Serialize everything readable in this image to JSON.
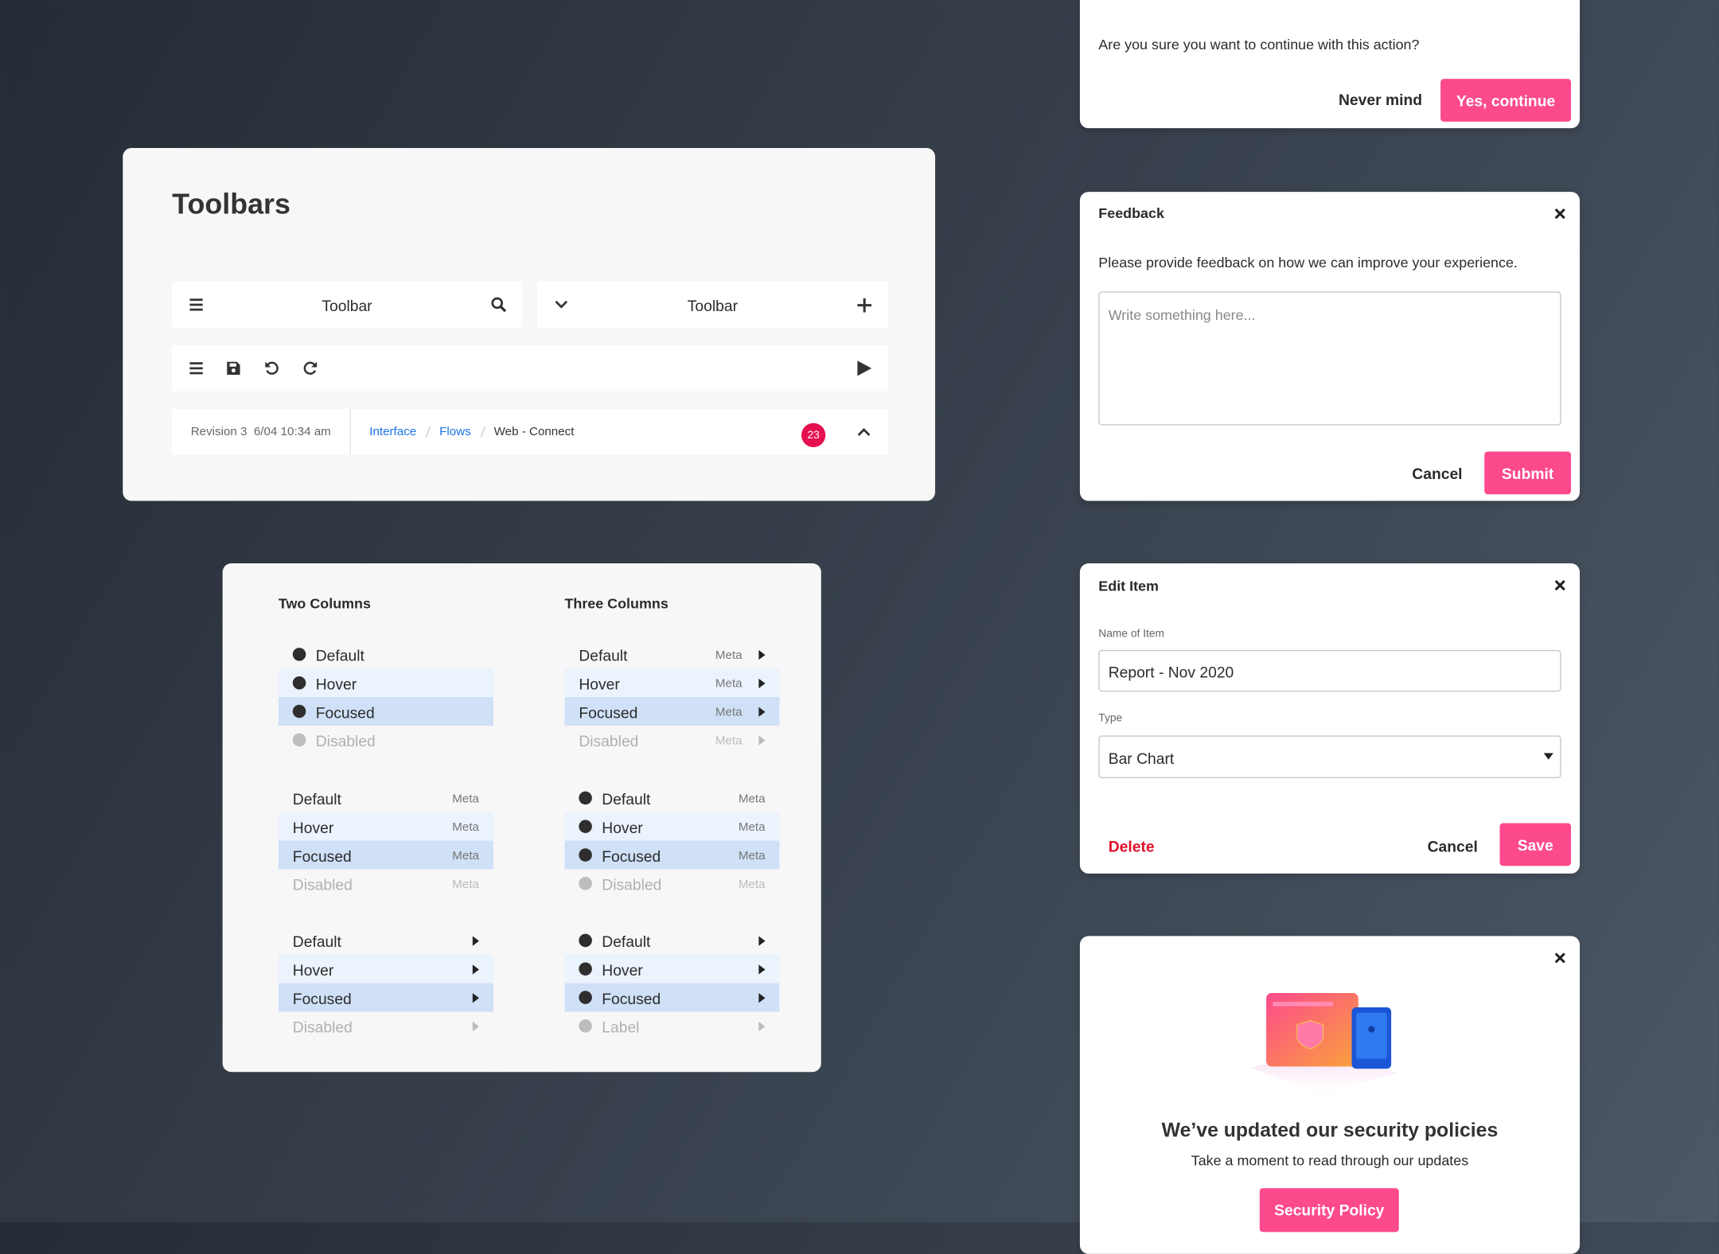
{
  "confirm_dialog": {
    "message": "Are you sure you want to continue with this action?",
    "secondary_button": "Never mind",
    "primary_button": "Yes, continue"
  },
  "toolbars": {
    "title": "Toolbars",
    "toolbar_left": "Toolbar",
    "toolbar_right": "Toolbar",
    "status": {
      "revision": "Revision 3",
      "timestamp": "6/04 10:34 am",
      "breadcrumbs": [
        "Interface",
        "Flows",
        "Web - Connect"
      ],
      "badge": 23
    }
  },
  "lists": {
    "states": [
      "default",
      "hover",
      "focused",
      "disabled"
    ],
    "columns": [
      {
        "heading": "Two Columns",
        "groups": [
          {
            "bullet": true,
            "arrow": false,
            "items": [
              {
                "label": "Default"
              },
              {
                "label": "Hover"
              },
              {
                "label": "Focused"
              },
              {
                "label": "Disabled"
              }
            ]
          },
          {
            "bullet": false,
            "arrow": false,
            "items": [
              {
                "label": "Default",
                "meta": "Meta"
              },
              {
                "label": "Hover",
                "meta": "Meta"
              },
              {
                "label": "Focused",
                "meta": "Meta"
              },
              {
                "label": "Disabled",
                "meta": "Meta"
              }
            ]
          },
          {
            "bullet": false,
            "arrow": true,
            "items": [
              {
                "label": "Default"
              },
              {
                "label": "Hover"
              },
              {
                "label": "Focused"
              },
              {
                "label": "Disabled"
              }
            ]
          }
        ]
      },
      {
        "heading": "Three Columns",
        "groups": [
          {
            "bullet": false,
            "arrow": true,
            "items": [
              {
                "label": "Default",
                "meta": "Meta"
              },
              {
                "label": "Hover",
                "meta": "Meta"
              },
              {
                "label": "Focused",
                "meta": "Meta"
              },
              {
                "label": "Disabled",
                "meta": "Meta"
              }
            ]
          },
          {
            "bullet": true,
            "arrow": false,
            "items": [
              {
                "label": "Default",
                "meta": "Meta"
              },
              {
                "label": "Hover",
                "meta": "Meta"
              },
              {
                "label": "Focused",
                "meta": "Meta"
              },
              {
                "label": "Disabled",
                "meta": "Meta"
              }
            ]
          },
          {
            "bullet": true,
            "arrow": true,
            "items": [
              {
                "label": "Default"
              },
              {
                "label": "Hover"
              },
              {
                "label": "Focused"
              },
              {
                "label": "Label"
              }
            ]
          }
        ]
      }
    ]
  },
  "feedback_dialog": {
    "title": "Feedback",
    "message": "Please provide feedback on how we can improve your experience.",
    "placeholder": "Write something here...",
    "cancel_button": "Cancel",
    "submit_button": "Submit"
  },
  "edit_dialog": {
    "title": "Edit Item",
    "name_label": "Name of Item",
    "name_value": "Report - Nov 2020",
    "type_label": "Type",
    "type_value": "Bar Chart",
    "delete_button": "Delete",
    "cancel_button": "Cancel",
    "save_button": "Save"
  },
  "security_dialog": {
    "title": "We’ve updated our security policies",
    "message": "Take a moment to read through our updates",
    "button": "Security Policy"
  }
}
